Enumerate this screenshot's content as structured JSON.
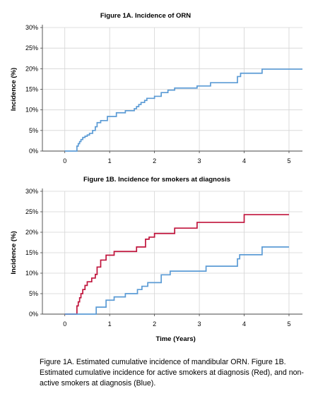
{
  "chart_data": [
    {
      "type": "line",
      "title": "Figure 1A. Incidence of ORN",
      "xlabel": "",
      "ylabel": "Incidence (%)",
      "xlim": [
        -0.5,
        5.3
      ],
      "ylim": [
        0,
        30
      ],
      "xticks": [
        0,
        1,
        2,
        3,
        4,
        5
      ],
      "yticks": [
        0,
        5,
        10,
        15,
        20,
        25,
        30
      ],
      "ytick_labels": [
        "0%",
        "5%",
        "10%",
        "15%",
        "20%",
        "25%",
        "30%"
      ],
      "grid": true,
      "step": true,
      "series": [
        {
          "color": "#5b9bd5",
          "x": [
            0,
            0.27,
            0.3,
            0.33,
            0.36,
            0.4,
            0.45,
            0.5,
            0.55,
            0.62,
            0.68,
            0.72,
            0.8,
            0.95,
            1.15,
            1.35,
            1.55,
            1.6,
            1.65,
            1.7,
            1.78,
            1.83,
            2.0,
            2.15,
            2.3,
            2.45,
            2.95,
            3.25,
            3.85,
            3.92,
            4.4,
            5.3
          ],
          "y": [
            0,
            1.2,
            1.8,
            2.3,
            2.8,
            3.3,
            3.6,
            3.9,
            4.3,
            5.0,
            5.9,
            6.9,
            7.4,
            8.4,
            9.3,
            9.8,
            10.3,
            10.8,
            11.3,
            11.8,
            12.3,
            12.8,
            13.3,
            14.2,
            14.8,
            15.3,
            15.8,
            16.6,
            18.1,
            18.9,
            19.9,
            19.9
          ]
        }
      ]
    },
    {
      "type": "line",
      "title": "Figure 1B. Incidence for smokers at diagnosis",
      "xlabel": "Time (Years)",
      "ylabel": "Incidence (%)",
      "xlim": [
        -0.5,
        5.3
      ],
      "ylim": [
        0,
        30
      ],
      "xticks": [
        0,
        1,
        2,
        3,
        4,
        5
      ],
      "yticks": [
        0,
        5,
        10,
        15,
        20,
        25,
        30
      ],
      "ytick_labels": [
        "0%",
        "5%",
        "10%",
        "15%",
        "20%",
        "25%",
        "30%"
      ],
      "grid": true,
      "step": true,
      "series": [
        {
          "color": "#c0143c",
          "x": [
            0,
            0.27,
            0.3,
            0.33,
            0.36,
            0.4,
            0.45,
            0.5,
            0.6,
            0.68,
            0.72,
            0.8,
            0.92,
            1.1,
            1.6,
            1.8,
            1.88,
            2.0,
            2.45,
            2.95,
            3.45,
            4.0,
            5.0
          ],
          "y": [
            0,
            2.0,
            3.0,
            4.0,
            5.0,
            6.0,
            7.0,
            7.9,
            8.8,
            9.7,
            11.5,
            13.2,
            14.4,
            15.3,
            16.4,
            18.3,
            18.8,
            19.7,
            21.0,
            22.4,
            22.4,
            24.3,
            24.3
          ]
        },
        {
          "color": "#5b9bd5",
          "x": [
            0,
            0.7,
            0.92,
            1.1,
            1.35,
            1.5,
            1.62,
            1.72,
            1.85,
            2.15,
            2.35,
            3.15,
            3.85,
            3.9,
            4.4,
            5.0
          ],
          "y": [
            0,
            1.7,
            3.4,
            4.2,
            5.0,
            5.0,
            6.0,
            6.8,
            7.7,
            9.6,
            10.5,
            11.7,
            13.5,
            14.5,
            16.4,
            16.4
          ]
        }
      ]
    }
  ],
  "caption": "Figure 1A. Estimated cumulative incidence of mandibular ORN. Figure 1B. Estimated cumulative incidence for active smokers at diagnosis (Red), and non-active smokers at diagnosis (Blue)."
}
